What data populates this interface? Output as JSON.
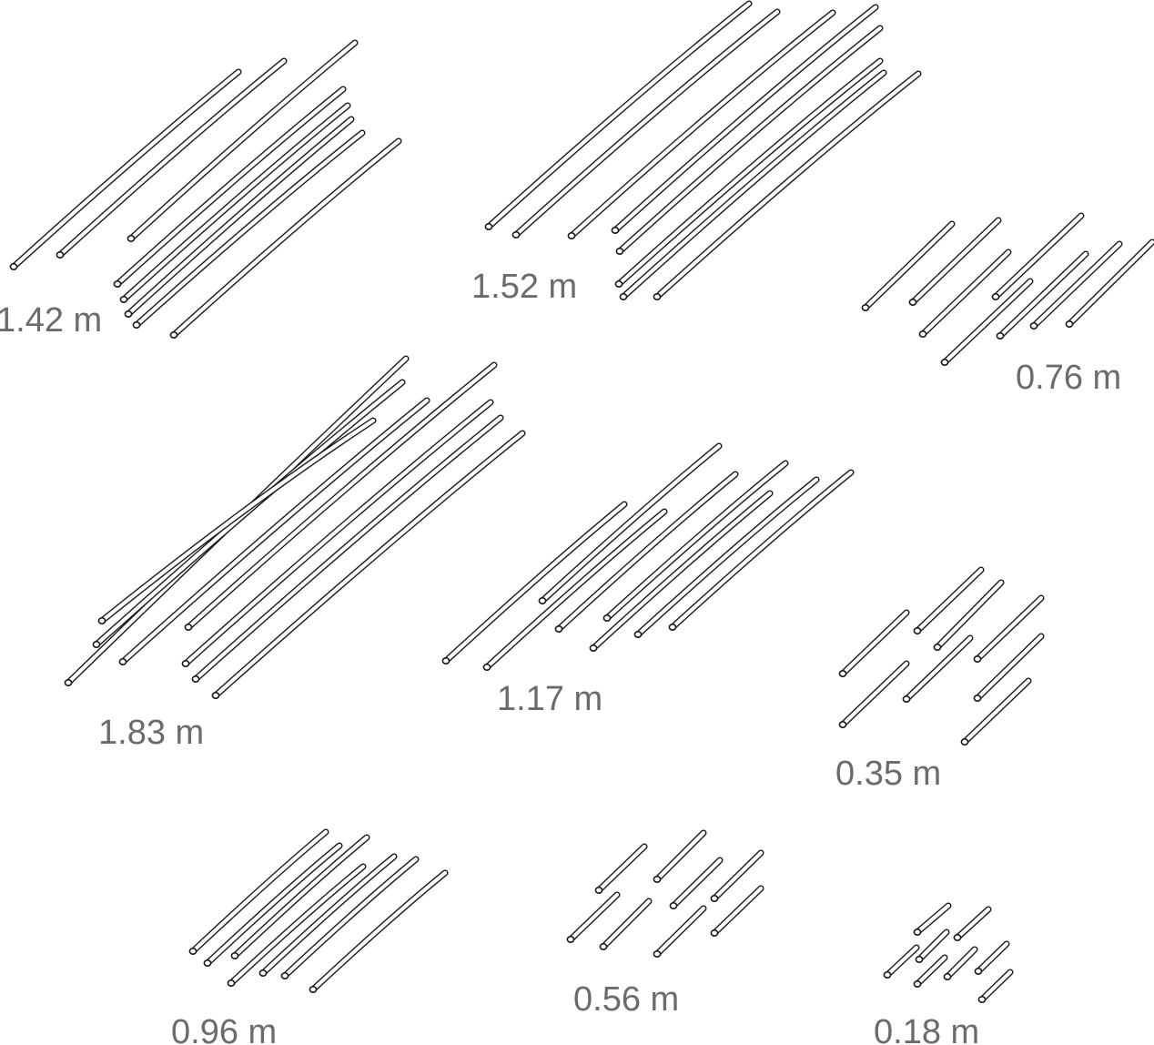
{
  "groups": [
    {
      "id": "g-142",
      "label": "1.42 m",
      "length_m": 1.42
    },
    {
      "id": "g-152",
      "label": "1.52 m",
      "length_m": 1.52
    },
    {
      "id": "g-076",
      "label": "0.76 m",
      "length_m": 0.76
    },
    {
      "id": "g-183",
      "label": "1.83 m",
      "length_m": 1.83
    },
    {
      "id": "g-117",
      "label": "1.17 m",
      "length_m": 1.17
    },
    {
      "id": "g-035",
      "label": "0.35 m",
      "length_m": 0.35
    },
    {
      "id": "g-096",
      "label": "0.96 m",
      "length_m": 0.96
    },
    {
      "id": "g-056",
      "label": "0.56 m",
      "length_m": 0.56
    },
    {
      "id": "g-018",
      "label": "0.18 m",
      "length_m": 0.18
    }
  ],
  "colors": {
    "stroke": "#1a1a1a",
    "label": "#6b6b6b",
    "background": "#ffffff"
  }
}
